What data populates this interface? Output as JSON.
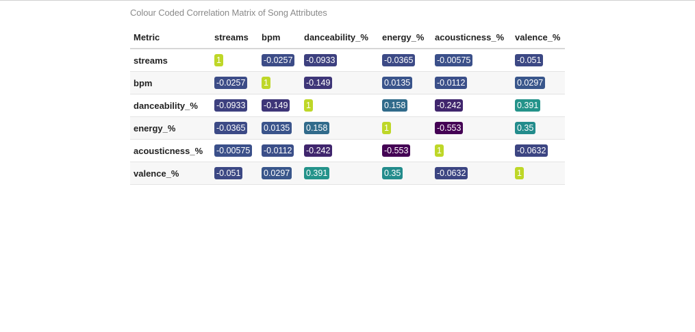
{
  "chart_data": {
    "type": "heatmap",
    "title": "Colour Coded Correlation Matrix of Song Attributes",
    "corner_label": "Metric",
    "columns": [
      "streams",
      "bpm",
      "danceability_%",
      "energy_%",
      "acousticness_%",
      "valence_%"
    ],
    "rows": [
      "streams",
      "bpm",
      "danceability_%",
      "energy_%",
      "acousticness_%",
      "valence_%"
    ],
    "values": [
      [
        "1",
        "-0.0257",
        "-0.0933",
        "-0.0365",
        "-0.00575",
        "-0.051"
      ],
      [
        "-0.0257",
        "1",
        "-0.149",
        "0.0135",
        "-0.0112",
        "0.0297"
      ],
      [
        "-0.0933",
        "-0.149",
        "1",
        "0.158",
        "-0.242",
        "0.391"
      ],
      [
        "-0.0365",
        "0.0135",
        "0.158",
        "1",
        "-0.553",
        "0.35"
      ],
      [
        "-0.00575",
        "-0.0112",
        "-0.242",
        "-0.553",
        "1",
        "-0.0632"
      ],
      [
        "-0.051",
        "0.0297",
        "0.391",
        "0.35",
        "-0.0632",
        "1"
      ]
    ],
    "color_scale": "viridis",
    "value_range": [
      -0.553,
      1
    ]
  }
}
